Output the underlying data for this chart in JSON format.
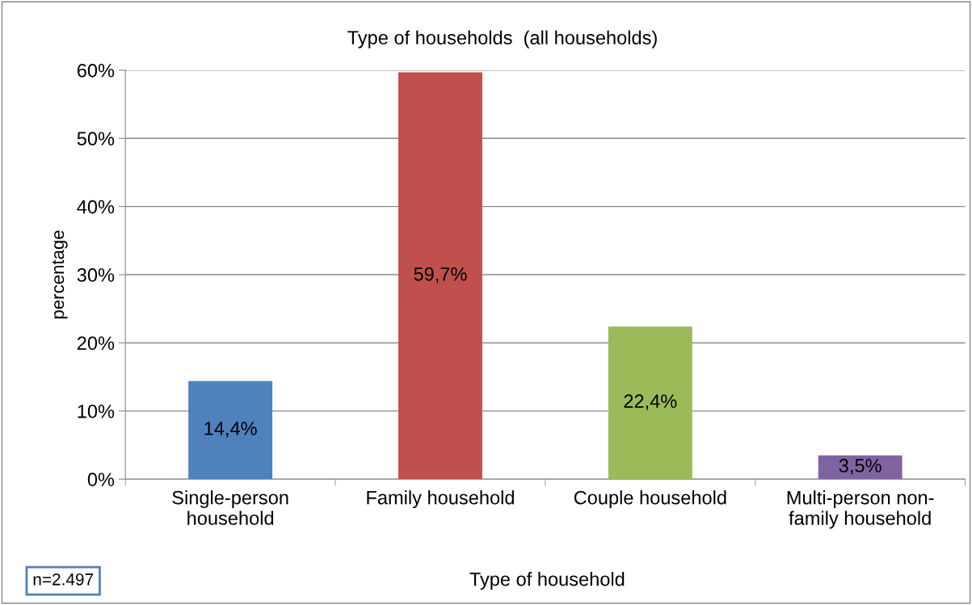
{
  "chart_data": {
    "type": "bar",
    "title": "Type of households  (all households)",
    "xlabel": "Type of household",
    "ylabel": "percentage",
    "categories": [
      "Single-person\nhousehold",
      "Family household",
      "Couple household",
      "Multi-person non-\nfamily household"
    ],
    "values": [
      14.4,
      59.7,
      22.4,
      3.5
    ],
    "colors": [
      "#4f81bd",
      "#c0504d",
      "#9bbb59",
      "#8064a2"
    ],
    "value_labels": [
      "14,4%",
      "59,7%",
      "22,4%",
      "3,5%"
    ],
    "ylim": [
      0,
      60
    ],
    "yticks": [
      {
        "value": 0,
        "label": "0%"
      },
      {
        "value": 10,
        "label": "10%"
      },
      {
        "value": 20,
        "label": "20%"
      },
      {
        "value": 30,
        "label": "30%"
      },
      {
        "value": 40,
        "label": "40%"
      },
      {
        "value": 50,
        "label": "50%"
      },
      {
        "value": 60,
        "label": "60%"
      }
    ],
    "grid": "y",
    "legend": false,
    "annotations": [
      "n=2.497"
    ]
  }
}
